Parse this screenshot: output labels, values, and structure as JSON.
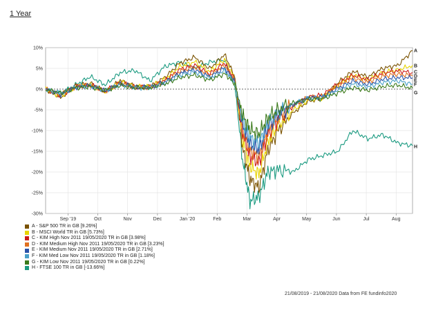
{
  "page": {
    "title": "1 Year"
  },
  "footer": {
    "text": "21/08/2019 - 21/08/2020 Data from FE fundinfo2020"
  },
  "chart_data": {
    "type": "line",
    "y_ticks": [
      "10%",
      "5%",
      "0%",
      "-5%",
      "-10%",
      "-15%",
      "-20%",
      "-25%",
      "-30%"
    ],
    "y_values": [
      10,
      5,
      0,
      -5,
      -10,
      -15,
      -20,
      -25,
      -30
    ],
    "ylim": [
      -30,
      10
    ],
    "x_ticks": [
      "Sep '19",
      "Oct",
      "Nov",
      "Dec",
      "Jan '20",
      "Feb",
      "Mar",
      "Apr",
      "May",
      "Jun",
      "Jul",
      "Aug"
    ],
    "x_tick_positions": [
      0.75,
      1.75,
      2.75,
      3.75,
      4.75,
      5.75,
      6.75,
      7.75,
      8.75,
      9.75,
      10.75,
      11.75
    ],
    "xlim": [
      0,
      12.3
    ],
    "grid": true,
    "legend_position": "bottom-left",
    "base_x": [
      0,
      0.5,
      1,
      1.5,
      2,
      2.5,
      3,
      3.5,
      4,
      4.5,
      5,
      5.5,
      6,
      6.35,
      6.6,
      6.85,
      7.15,
      7.45,
      7.8,
      8.3,
      8.8,
      9.3,
      9.8,
      10.3,
      10.8,
      11.3,
      11.8,
      12.3
    ],
    "base_y": [
      0,
      -1.5,
      0.5,
      1.0,
      -0.5,
      1.5,
      0.5,
      0.5,
      2.0,
      4.5,
      5.5,
      3.5,
      6.0,
      2.0,
      -10.0,
      -15.5,
      -17.0,
      -10.5,
      -7.0,
      -4.0,
      -2.0,
      -1.5,
      1.0,
      3.0,
      2.0,
      3.5,
      4.0,
      4.0
    ],
    "series": [
      {
        "code": "A",
        "name": "A - S&P 500 TR in GB [9.26%]",
        "color": "#7a5200",
        "amp": 1.4,
        "shift": -1.5,
        "end": 9.26
      },
      {
        "code": "B",
        "name": "B - MSCI World TR in GB [5.73%]",
        "color": "#e8d400",
        "amp": 1.2,
        "shift": -1.0,
        "end": 5.73
      },
      {
        "code": "C",
        "name": "C - KIM High Nov 2011  19/05/2020 TR in GB [3.98%]",
        "color": "#cc1a1a",
        "amp": 1.05,
        "shift": 0.0,
        "end": 3.98
      },
      {
        "code": "D",
        "name": "D - KIM Medium High Nov 2011  19/05/2020 TR in GB [3.23%]",
        "color": "#e07020",
        "amp": 0.95,
        "shift": 0.0,
        "end": 3.23
      },
      {
        "code": "E",
        "name": "E - KIM Medium Nov 2011  19/05/2020 TR in GB [2.71%]",
        "color": "#2a52a8",
        "amp": 0.85,
        "shift": 0.0,
        "end": 2.71
      },
      {
        "code": "F",
        "name": "F - KIM Med Low Nov 2011  19/05/2020 TR in GB [1.18%]",
        "color": "#4aa0c8",
        "amp": 0.75,
        "shift": 0.0,
        "end": 1.18
      },
      {
        "code": "G",
        "name": "G - KIM Low Nov 2011  19/05/2020 TR in GB [0.22%]",
        "color": "#3a7a1a",
        "amp": 0.62,
        "shift": 0.0,
        "end": 0.22
      },
      {
        "code": "H",
        "name": "H - FTSE 100 TR in GB [-13.66%]",
        "color": "#1a9a80",
        "x": [
          0,
          0.5,
          1,
          1.5,
          2,
          2.5,
          3,
          3.5,
          4,
          4.5,
          5,
          5.5,
          6,
          6.35,
          6.6,
          6.85,
          7.15,
          7.45,
          7.8,
          8.3,
          8.8,
          9.3,
          9.8,
          10.3,
          10.8,
          11.3,
          11.8,
          12.3
        ],
        "y": [
          0,
          -1.0,
          1.0,
          3.0,
          1.0,
          4.0,
          4.5,
          2.0,
          5.5,
          6.5,
          5.0,
          6.5,
          7.0,
          0.5,
          -17.0,
          -27.0,
          -26.0,
          -20.0,
          -19.5,
          -20.0,
          -17.0,
          -16.0,
          -15.0,
          -10.0,
          -12.0,
          -11.0,
          -13.0,
          -13.66
        ]
      }
    ]
  }
}
